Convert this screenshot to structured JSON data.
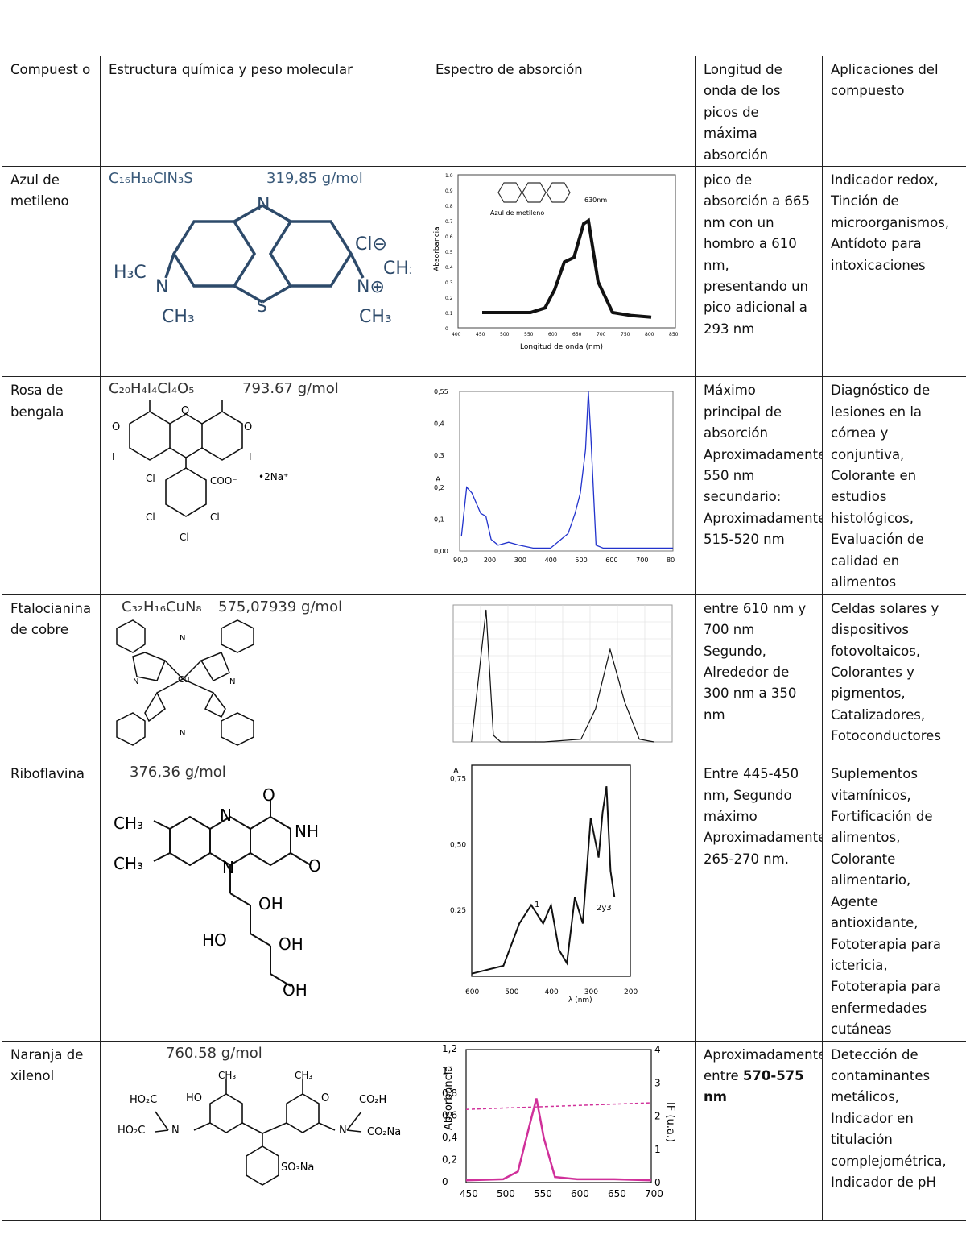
{
  "headers": [
    "Compuest o",
    "Estructura química y peso molecular",
    "Espectro de absorción",
    "Longitud de onda de los picos de máxima absorción",
    "Aplicaciones del compuesto"
  ],
  "rows": [
    {
      "name": "Azul de metileno",
      "formula": "C₁₆H₁₈ClN₃S",
      "mw": "319,85 g/mol",
      "peaks": "pico de absorción a 665 nm con un hombro a 610 nm, presentando un pico adicional a 293 nm",
      "apps": "Indicador redox, Tinción de microorganismos, Antídoto para intoxicaciones",
      "spectrum": {
        "xlabel": "Longitud de onda (nm)",
        "ylabel": "Absorbancia",
        "inset": "Azul de metileno",
        "peak_label": "630nm",
        "xticks": [
          "400",
          "450",
          "500",
          "550",
          "600",
          "650",
          "700",
          "750",
          "800",
          "850"
        ],
        "yticks": [
          "0",
          "0.1",
          "0.2",
          "0.3",
          "0.4",
          "0.5",
          "0.6",
          "0.7",
          "0.8",
          "0.9",
          "1.0"
        ]
      }
    },
    {
      "name": "Rosa de bengala",
      "formula": "C₂₀H₄I₄Cl₄O₅",
      "mw": "793.67 g/mol",
      "peaks": "Máximo principal de absorción Aproximadamente 550 nm secundario: Aproximadamente 515-520 nm",
      "apps": "Diagnóstico de lesiones en la córnea y conjuntiva, Colorante en estudios histológicos, Evaluación de calidad en alimentos",
      "spectrum": {
        "ylabel": "A",
        "xticks": [
          "90,0",
          "200",
          "300",
          "400",
          "500",
          "600",
          "700",
          "80"
        ],
        "yticks": [
          "0,00",
          "0,1",
          "0,2",
          "0,3",
          "0,4",
          "0,55"
        ]
      }
    },
    {
      "name": "Ftalocianina de cobre",
      "formula": "C₃₂H₁₆CuN₈",
      "mw": "575,07939 g/mol",
      "peaks": "entre 610 nm y 700 nm Segundo, Alrededor de 300 nm a 350 nm",
      "apps": "Celdas solares y dispositivos fotovoltaicos, Colorantes y pigmentos, Catalizadores, Fotoconductores"
    },
    {
      "name": "Riboflavina",
      "formula": "",
      "mw": "376,36 g/mol",
      "peaks": "Entre 445-450 nm, Segundo máximo Aproximadamente 265-270 nm.",
      "apps": "Suplementos vitamínicos, Fortificación de alimentos, Colorante alimentario, Agente antioxidante, Fototerapia para ictericia, Fototerapia para enfermedades cutáneas",
      "spectrum": {
        "ylabel": "A",
        "xlabel": "λ (nm)",
        "xticks": [
          "600",
          "500",
          "400",
          "300",
          "200"
        ],
        "yticks": [
          "0,75",
          "0,50",
          "0,25"
        ],
        "labels": [
          "1",
          "2y3"
        ]
      }
    },
    {
      "name": "Naranja de xilenol",
      "formula": "",
      "mw": "760.58 g/mol",
      "peaks_pre": "Aproximadamente entre ",
      "peaks_bold": "570-575 nm",
      "apps": "Detección de contaminantes metálicos, Indicador en titulación complejométrica, Indicador de pH",
      "spectrum": {
        "ylabel": "Absorbancia",
        "ylabel2": "IF (u.a.)",
        "yticks": [
          "0",
          "0,2",
          "0,4",
          "0,6",
          "0,8",
          "1",
          "1,2"
        ],
        "y2ticks": [
          "0",
          "1",
          "2",
          "3",
          "4"
        ],
        "xticks": [
          "450",
          "500",
          "550",
          "600",
          "650",
          "700"
        ]
      }
    }
  ],
  "chart_data": [
    {
      "type": "line",
      "ylabel": "Absorbancia",
      "xlabel": "Longitud de onda (nm)",
      "xlim": [
        400,
        850
      ],
      "ylim": [
        0,
        1.0
      ],
      "series": [
        {
          "x": [
            450,
            500,
            550,
            580,
            600,
            620,
            640,
            660,
            670,
            690,
            720,
            760,
            800
          ],
          "values": [
            0.1,
            0.1,
            0.1,
            0.13,
            0.25,
            0.43,
            0.46,
            0.68,
            0.7,
            0.3,
            0.1,
            0.08,
            0.07
          ]
        }
      ]
    },
    {
      "type": "line",
      "ylabel": "A",
      "xlim": [
        190,
        800
      ],
      "ylim": [
        0,
        0.55
      ],
      "series": [
        {
          "x": [
            195,
            210,
            225,
            250,
            265,
            280,
            300,
            330,
            360,
            400,
            450,
            500,
            520,
            535,
            550,
            558,
            565,
            580,
            600,
            700,
            800
          ],
          "values": [
            0.05,
            0.22,
            0.2,
            0.13,
            0.12,
            0.04,
            0.02,
            0.03,
            0.02,
            0.01,
            0.01,
            0.06,
            0.13,
            0.2,
            0.35,
            0.55,
            0.4,
            0.02,
            0.01,
            0.01,
            0.01
          ]
        }
      ]
    },
    {
      "type": "line",
      "series": [
        {
          "x": [
            300,
            340,
            360,
            380,
            400,
            500,
            600,
            640,
            680,
            720,
            760,
            800
          ],
          "values": [
            0,
            1.0,
            0.05,
            0,
            0,
            0,
            0.02,
            0.25,
            0.7,
            0.3,
            0.02,
            0
          ]
        }
      ]
    },
    {
      "type": "line",
      "ylabel": "A",
      "xlabel": "λ (nm)",
      "xlim": [
        600,
        200
      ],
      "ylim": [
        0,
        0.8
      ],
      "series": [
        {
          "x": [
            600,
            520,
            480,
            450,
            420,
            400,
            380,
            360,
            340,
            320,
            300,
            280,
            270,
            260,
            250,
            240
          ],
          "values": [
            0.01,
            0.04,
            0.2,
            0.27,
            0.2,
            0.27,
            0.1,
            0.05,
            0.3,
            0.2,
            0.6,
            0.45,
            0.62,
            0.72,
            0.4,
            0.3
          ]
        }
      ]
    },
    {
      "type": "line",
      "ylabel": "Absorbancia",
      "xlim": [
        450,
        700
      ],
      "ylim": [
        0,
        1.2
      ],
      "series": [
        {
          "x": [
            450,
            500,
            520,
            535,
            545,
            555,
            570,
            600,
            650,
            700
          ],
          "values": [
            0.02,
            0.03,
            0.1,
            0.5,
            0.76,
            0.4,
            0.05,
            0.03,
            0.03,
            0.02
          ]
        },
        {
          "x": [
            450,
            700
          ],
          "values": [
            0.66,
            0.72
          ]
        }
      ]
    }
  ]
}
